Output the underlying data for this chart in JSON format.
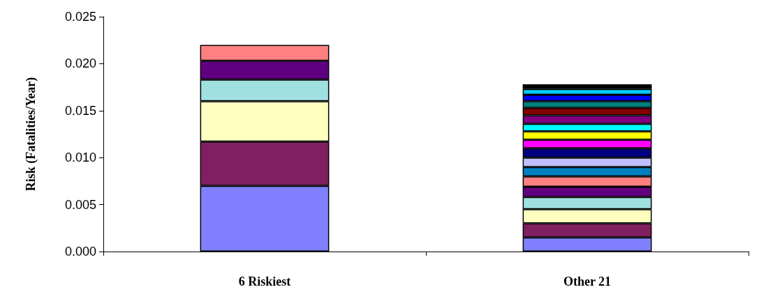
{
  "chart_data": {
    "type": "bar",
    "stacked": true,
    "ylabel": "Risk (Fatalities/Year)",
    "categories": [
      "6 Riskiest",
      "Other 21"
    ],
    "ylim": [
      0,
      0.025
    ],
    "yticks": [
      {
        "value": 0,
        "label": "0.000"
      },
      {
        "value": 0.005,
        "label": "0.005"
      },
      {
        "value": 0.01,
        "label": "0.010"
      },
      {
        "value": 0.015,
        "label": "0.015"
      },
      {
        "value": 0.02,
        "label": "0.020"
      },
      {
        "value": 0.025,
        "label": "0.025"
      }
    ],
    "grid": false,
    "series": [
      {
        "color": "#8080ff",
        "values": [
          0.007,
          0.0015
        ]
      },
      {
        "color": "#802060",
        "values": [
          0.0047,
          0.0015
        ]
      },
      {
        "color": "#ffffc0",
        "values": [
          0.0043,
          0.0015
        ]
      },
      {
        "color": "#a0e0e0",
        "values": [
          0.0023,
          0.0013
        ]
      },
      {
        "color": "#600080",
        "values": [
          0.002,
          0.0011
        ]
      },
      {
        "color": "#ff8080",
        "values": [
          0.0017,
          0.0011
        ]
      },
      {
        "color": "#0080c0",
        "values": [
          null,
          0.001
        ]
      },
      {
        "color": "#c0c0ff",
        "values": [
          null,
          0.001
        ]
      },
      {
        "color": "#000080",
        "values": [
          null,
          0.001
        ]
      },
      {
        "color": "#ff00ff",
        "values": [
          null,
          0.0009
        ]
      },
      {
        "color": "#ffff00",
        "values": [
          null,
          0.0009
        ]
      },
      {
        "color": "#00ffff",
        "values": [
          null,
          0.0008
        ]
      },
      {
        "color": "#800080",
        "values": [
          null,
          0.0009
        ]
      },
      {
        "color": "#800000",
        "values": [
          null,
          0.0008
        ]
      },
      {
        "color": "#008080",
        "values": [
          null,
          0.0007
        ]
      },
      {
        "color": "#0000ff",
        "values": [
          null,
          0.0007
        ]
      },
      {
        "color": "#00ccff",
        "values": [
          null,
          0.0006
        ]
      },
      {
        "color": "#000000",
        "values": [
          null,
          0.0005
        ]
      }
    ]
  }
}
